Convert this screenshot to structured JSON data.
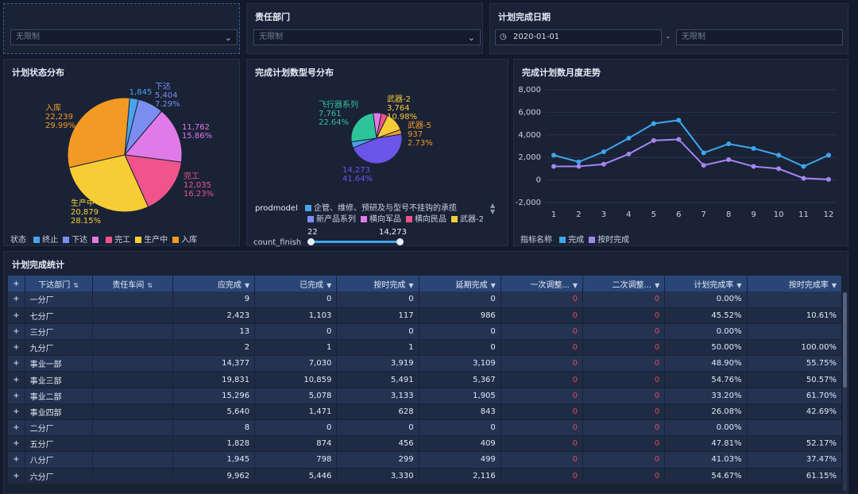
{
  "filters": {
    "filter1": {
      "label": "",
      "value": "无限制"
    },
    "department": {
      "label": "责任部门",
      "value": "无限制"
    },
    "date": {
      "label": "计划完成日期",
      "start": "2020-01-01",
      "sep": "-",
      "end": "无限制"
    }
  },
  "panels": {
    "status_title": "计划状态分布",
    "model_title": "完成计划数型号分布",
    "trend_title": "完成计划数月度走势",
    "table_title": "计划完成统计"
  },
  "status_legend": {
    "label": "状态",
    "items": [
      {
        "name": "终止",
        "color": "#4aa3e8"
      },
      {
        "name": "下达",
        "color": "#7b8ef0"
      },
      {
        "name": "",
        "color": "#e07ae8"
      },
      {
        "name": "完工",
        "color": "#f0548a"
      },
      {
        "name": "生产中",
        "color": "#f7cd35"
      },
      {
        "name": "入库",
        "color": "#f39a24"
      }
    ]
  },
  "model_legend": {
    "label": "prodmodel",
    "row1": [
      {
        "name": "企管、维修、预研及与型号不挂钩的承揽",
        "color": "#4aa3e8"
      }
    ],
    "row2": [
      {
        "name": "新产品系列",
        "color": "#7b8ef0"
      },
      {
        "name": "横向军品",
        "color": "#e07ae8"
      },
      {
        "name": "横向民品",
        "color": "#f0548a"
      },
      {
        "name": "武器-2",
        "color": "#f7cd35"
      }
    ],
    "slider_label": "count_finish",
    "slider_min": "22",
    "slider_max": "14,273"
  },
  "trend_legend": {
    "label": "指标名称",
    "items": [
      {
        "name": "完成",
        "color": "#3fa6ec"
      },
      {
        "name": "按时完成",
        "color": "#a685f0"
      }
    ]
  },
  "chart_data": [
    {
      "type": "pie",
      "title": "计划状态分布",
      "slices": [
        {
          "name": "终止",
          "value": 1845,
          "percent": "",
          "color": "#4aa3e8"
        },
        {
          "name": "下达",
          "value": 5404,
          "percent": "7.29%",
          "color": "#7b8ef0"
        },
        {
          "name": "",
          "value": 11762,
          "percent": "15.86%",
          "color": "#e07ae8"
        },
        {
          "name": "完工",
          "value": 12035,
          "percent": "16.23%",
          "color": "#f0548a"
        },
        {
          "name": "生产中",
          "value": 20879,
          "percent": "28.15%",
          "color": "#f7cd35"
        },
        {
          "name": "入库",
          "value": 22239,
          "percent": "29.99%",
          "color": "#f39a24"
        }
      ],
      "labels": [
        {
          "lines": [
            "1,845"
          ],
          "color": "#4aa3e8"
        },
        {
          "lines": [
            "下达",
            "5,404",
            "7.29%"
          ],
          "color": "#7b8ef0"
        },
        {
          "lines": [
            "11,762",
            "15.86%"
          ],
          "color": "#e07ae8"
        },
        {
          "lines": [
            "完工",
            "12,035",
            "16.23%"
          ],
          "color": "#f0548a"
        },
        {
          "lines": [
            "生产中",
            "20,879",
            "28.15%"
          ],
          "color": "#f7cd35"
        },
        {
          "lines": [
            "入库",
            "22,239",
            "29.99%"
          ],
          "color": "#f39a24"
        }
      ]
    },
    {
      "type": "pie",
      "title": "完成计划数型号分布",
      "slices": [
        {
          "name": "武器-5",
          "value": 937,
          "percent": "2.73%",
          "color": "#f39a24"
        },
        {
          "name": "新产品系列",
          "value": 14273,
          "percent": "41.64%",
          "color": "#6b55e8"
        },
        {
          "name": "",
          "value": 1200,
          "percent": "",
          "color": "#4aa3e8"
        },
        {
          "name": "飞行器系列",
          "value": 7761,
          "percent": "22.64%",
          "color": "#2ec49a"
        },
        {
          "name": "横向军品",
          "value": 1600,
          "percent": "",
          "color": "#e07ae8"
        },
        {
          "name": "横向民品",
          "value": 1300,
          "percent": "",
          "color": "#f0548a"
        },
        {
          "name": "武器-2",
          "value": 3764,
          "percent": "10.98%",
          "color": "#f7cd35"
        }
      ],
      "labels": [
        {
          "lines": [
            "武器-2",
            "3,764",
            "10.98%"
          ],
          "color": "#f7cd35"
        },
        {
          "lines": [
            "武器-5",
            "937",
            "2.73%"
          ],
          "color": "#f39a24"
        },
        {
          "lines": [
            "飞行器系列",
            "7,761",
            "22.64%"
          ],
          "color": "#2ec49a"
        },
        {
          "lines": [
            "14,273",
            "41.64%"
          ],
          "color": "#6b55e8"
        }
      ]
    },
    {
      "type": "line",
      "title": "完成计划数月度走势",
      "x": [
        1,
        2,
        3,
        4,
        5,
        6,
        7,
        8,
        9,
        10,
        11,
        12
      ],
      "ylim": [
        -2000,
        8000
      ],
      "yticks": [
        -2000,
        0,
        2000,
        4000,
        6000,
        8000
      ],
      "ytick_labels": [
        "-2,000",
        "0",
        "2,000",
        "4,000",
        "6,000",
        "8,000"
      ],
      "grid": true,
      "series": [
        {
          "name": "完成",
          "color": "#3fa6ec",
          "values": [
            2200,
            1600,
            2500,
            3700,
            5000,
            5300,
            2400,
            3200,
            2800,
            2200,
            1200,
            2200
          ]
        },
        {
          "name": "按时完成",
          "color": "#a685f0",
          "values": [
            1200,
            1200,
            1400,
            2300,
            3500,
            3600,
            1300,
            1800,
            1200,
            1000,
            150,
            50
          ]
        }
      ]
    },
    {
      "type": "table",
      "title": "计划完成统计",
      "columns": [
        "下达部门",
        "责任车间",
        "应完成",
        "已完成",
        "按时完成",
        "延期完成",
        "一次调整...",
        "二次调整...",
        "计划完成率",
        "按时完成率"
      ],
      "rows": [
        [
          "一分厂",
          "",
          "9",
          "0",
          "0",
          "0",
          "0",
          "0",
          "0.00%",
          ""
        ],
        [
          "七分厂",
          "",
          "2,423",
          "1,103",
          "117",
          "986",
          "0",
          "0",
          "45.52%",
          "10.61%"
        ],
        [
          "三分厂",
          "",
          "13",
          "0",
          "0",
          "0",
          "0",
          "0",
          "0.00%",
          ""
        ],
        [
          "九分厂",
          "",
          "2",
          "1",
          "1",
          "0",
          "0",
          "0",
          "50.00%",
          "100.00%"
        ],
        [
          "事业一部",
          "",
          "14,377",
          "7,030",
          "3,919",
          "3,109",
          "0",
          "0",
          "48.90%",
          "55.75%"
        ],
        [
          "事业三部",
          "",
          "19,831",
          "10,859",
          "5,491",
          "5,367",
          "0",
          "0",
          "54.76%",
          "50.57%"
        ],
        [
          "事业二部",
          "",
          "15,296",
          "5,078",
          "3,133",
          "1,905",
          "0",
          "0",
          "33.20%",
          "61.70%"
        ],
        [
          "事业四部",
          "",
          "5,640",
          "1,471",
          "628",
          "843",
          "0",
          "0",
          "26.08%",
          "42.69%"
        ],
        [
          "二分厂",
          "",
          "8",
          "0",
          "0",
          "0",
          "0",
          "0",
          "0.00%",
          ""
        ],
        [
          "五分厂",
          "",
          "1,828",
          "874",
          "456",
          "409",
          "0",
          "0",
          "47.81%",
          "52.17%"
        ],
        [
          "八分厂",
          "",
          "1,945",
          "798",
          "299",
          "499",
          "0",
          "0",
          "41.03%",
          "37.47%"
        ],
        [
          "六分厂",
          "",
          "9,962",
          "5,446",
          "3,330",
          "2,116",
          "0",
          "0",
          "54.67%",
          "61.15%"
        ]
      ]
    }
  ]
}
